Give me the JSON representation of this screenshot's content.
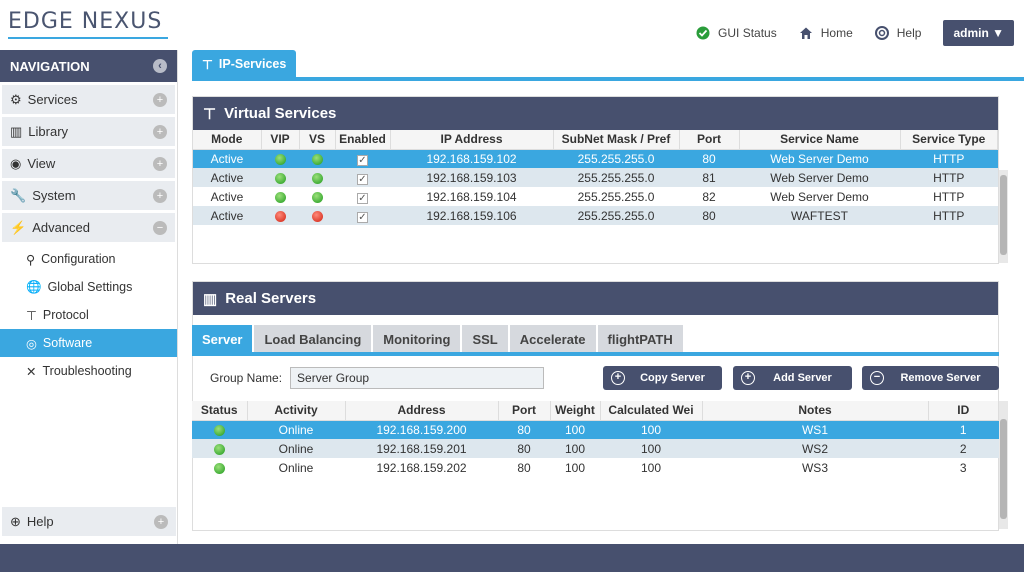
{
  "logo": {
    "text": "EDGE NEXUS"
  },
  "topnav": {
    "gui_status": "GUI Status",
    "home": "Home",
    "help": "Help",
    "admin": "admin ▼"
  },
  "nav": {
    "header": "NAVIGATION",
    "sections": [
      {
        "label": "Services",
        "icon": "gear-icon"
      },
      {
        "label": "Library",
        "icon": "library-icon"
      },
      {
        "label": "View",
        "icon": "eye-icon"
      },
      {
        "label": "System",
        "icon": "wrench-icon"
      },
      {
        "label": "Advanced",
        "icon": "lightning-icon"
      }
    ],
    "advanced_items": [
      {
        "label": "Configuration"
      },
      {
        "label": "Global Settings"
      },
      {
        "label": "Protocol"
      },
      {
        "label": "Software"
      },
      {
        "label": "Troubleshooting"
      }
    ],
    "help": "Help"
  },
  "main_tab": "IP-Services",
  "virtual_services": {
    "title": "Virtual Services",
    "columns": [
      "Mode",
      "VIP",
      "VS",
      "Enabled",
      "IP Address",
      "SubNet Mask / Pref",
      "Port",
      "Service Name",
      "Service Type"
    ],
    "rows": [
      [
        "Active",
        "g",
        "g",
        "✓",
        "192.168.159.102",
        "255.255.255.0",
        "80",
        "Web Server Demo",
        "HTTP"
      ],
      [
        "Active",
        "g",
        "g",
        "✓",
        "192.168.159.103",
        "255.255.255.0",
        "81",
        "Web Server Demo",
        "HTTP"
      ],
      [
        "Active",
        "g",
        "g",
        "✓",
        "192.168.159.104",
        "255.255.255.0",
        "82",
        "Web Server Demo",
        "HTTP"
      ],
      [
        "Active",
        "r",
        "r",
        "✓",
        "192.168.159.106",
        "255.255.255.0",
        "80",
        "WAFTEST",
        "HTTP"
      ]
    ]
  },
  "real_servers": {
    "title": "Real Servers",
    "tabs": [
      "Server",
      "Load Balancing",
      "Monitoring",
      "SSL",
      "Accelerate",
      "flightPATH"
    ],
    "group_label": "Group Name:",
    "group_value": "Server Group",
    "buttons": {
      "copy": "Copy Server",
      "add": "Add Server",
      "remove": "Remove Server"
    },
    "columns": [
      "Status",
      "Activity",
      "Address",
      "Port",
      "Weight",
      "Calculated Wei",
      "Notes",
      "ID"
    ],
    "rows": [
      [
        "g",
        "Online",
        "192.168.159.200",
        "80",
        "100",
        "100",
        "WS1",
        "1"
      ],
      [
        "g",
        "Online",
        "192.168.159.201",
        "80",
        "100",
        "100",
        "WS2",
        "2"
      ],
      [
        "g",
        "Online",
        "192.168.159.202",
        "80",
        "100",
        "100",
        "WS3",
        "3"
      ]
    ]
  },
  "colors": {
    "accent": "#3aa7e0",
    "header": "#47506e"
  }
}
